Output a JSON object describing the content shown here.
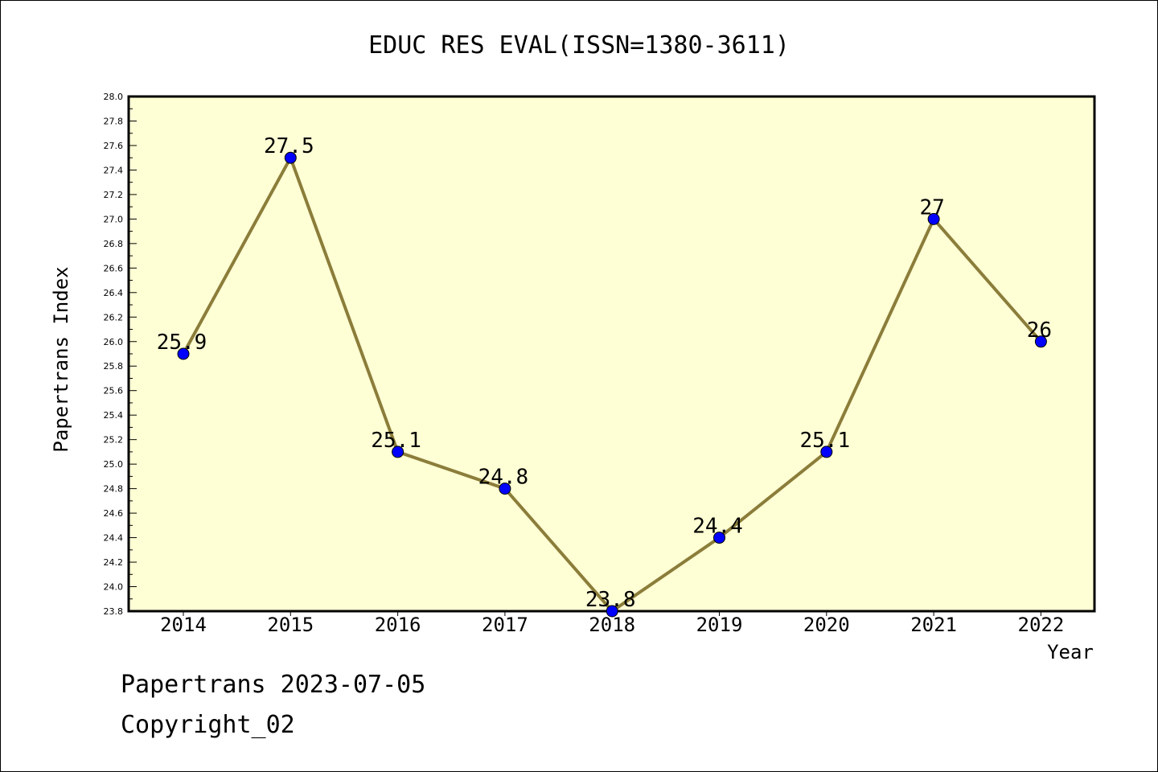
{
  "chart_data": {
    "type": "line",
    "title": "EDUC RES EVAL(ISSN=1380-3611)",
    "xlabel": "Year",
    "ylabel": "Papertrans Index",
    "categories": [
      "2014",
      "2015",
      "2016",
      "2017",
      "2018",
      "2019",
      "2020",
      "2021",
      "2022"
    ],
    "values": [
      25.9,
      27.5,
      25.1,
      24.8,
      23.8,
      24.4,
      25.1,
      27.0,
      26.0
    ],
    "data_labels": [
      "25.9",
      "27.5",
      "25.1",
      "24.8",
      "23.8",
      "24.4",
      "25.1",
      "27",
      "26"
    ],
    "ylim": [
      23.8,
      28.0
    ],
    "yticks": [
      "23.8",
      "24.0",
      "24.2",
      "24.4",
      "24.6",
      "24.8",
      "25.0",
      "25.2",
      "25.4",
      "25.6",
      "25.8",
      "26.0",
      "26.2",
      "26.4",
      "26.6",
      "26.8",
      "27.0",
      "27.2",
      "27.4",
      "27.6",
      "27.8",
      "28.0"
    ],
    "grid": false,
    "colors": {
      "plot_background": "#ffffd5",
      "line": "#8b7d3a",
      "marker": "#0000ff"
    }
  },
  "footer": {
    "line1": "Papertrans 2023-07-05",
    "line2": "Copyright_02"
  }
}
